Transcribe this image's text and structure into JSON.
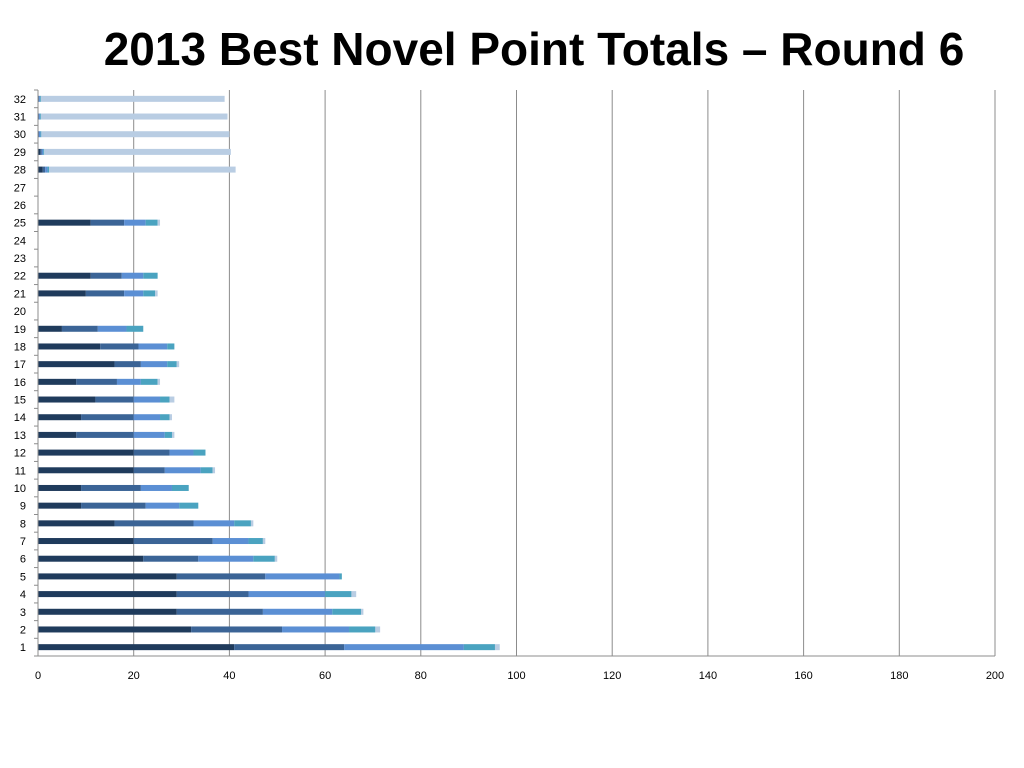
{
  "chart_data": {
    "type": "bar",
    "orientation": "horizontal",
    "stacked": true,
    "title": "2013 Best Novel Point Totals – Round 6",
    "xlabel": "",
    "ylabel": "",
    "xlim": [
      0,
      200
    ],
    "x_ticks": [
      "0",
      "20",
      "40",
      "60",
      "80",
      "100",
      "120",
      "140",
      "160",
      "180",
      "200"
    ],
    "categories": [
      "1",
      "2",
      "3",
      "4",
      "5",
      "6",
      "7",
      "8",
      "9",
      "10",
      "11",
      "12",
      "13",
      "14",
      "15",
      "16",
      "17",
      "18",
      "19",
      "20",
      "21",
      "22",
      "23",
      "24",
      "25",
      "26",
      "27",
      "28",
      "29",
      "30",
      "31",
      "32"
    ],
    "grid": "vertical",
    "legend": "none",
    "series_colors": [
      "#1f3b5c",
      "#3b6496",
      "#5b8fd4",
      "#4aa3c0",
      "#b9cde3"
    ],
    "series": [
      {
        "values": [
          41,
          32,
          29,
          29,
          29,
          22,
          20,
          16,
          9,
          9,
          20,
          20,
          8,
          9,
          12,
          8,
          16,
          13,
          5,
          0,
          10,
          11,
          0,
          0,
          11,
          0,
          0,
          1,
          0.5,
          0,
          0,
          0
        ]
      },
      {
        "values": [
          23,
          19,
          18,
          15,
          18.5,
          11.5,
          16.5,
          16.5,
          13.5,
          12.5,
          6.5,
          7.5,
          12,
          11,
          8,
          8.5,
          5.5,
          8,
          7.5,
          0,
          8,
          6.5,
          0,
          0,
          7,
          0,
          0,
          0.5,
          0.3,
          0.2,
          0.2,
          0.2
        ]
      },
      {
        "values": [
          25,
          14,
          14.5,
          16,
          15.5,
          11.5,
          7.5,
          8.5,
          7,
          6.5,
          7.5,
          5,
          6.5,
          5.5,
          5.5,
          5,
          5.5,
          6,
          6,
          0,
          4,
          4.5,
          0,
          0,
          4.5,
          0,
          0,
          0.5,
          0.3,
          0.3,
          0.2,
          0.2
        ]
      },
      {
        "values": [
          6.5,
          5.5,
          6,
          5.5,
          0.5,
          4.5,
          3,
          3.5,
          4,
          3.5,
          2.5,
          2.5,
          1.5,
          2,
          2,
          3.5,
          2,
          1.5,
          3.5,
          0,
          2.5,
          3,
          0,
          0,
          2.5,
          0,
          0,
          0.3,
          0.2,
          0.2,
          0.2,
          0.2
        ]
      },
      {
        "values": [
          1,
          1,
          0.5,
          1,
          0,
          0.5,
          0.5,
          0.5,
          0,
          0,
          0.5,
          0,
          0.5,
          0.5,
          1,
          0.5,
          0.5,
          0,
          0,
          0,
          0.5,
          0,
          0,
          0,
          0.5,
          0,
          0,
          39,
          39,
          39.3,
          39,
          38.4
        ]
      }
    ]
  }
}
